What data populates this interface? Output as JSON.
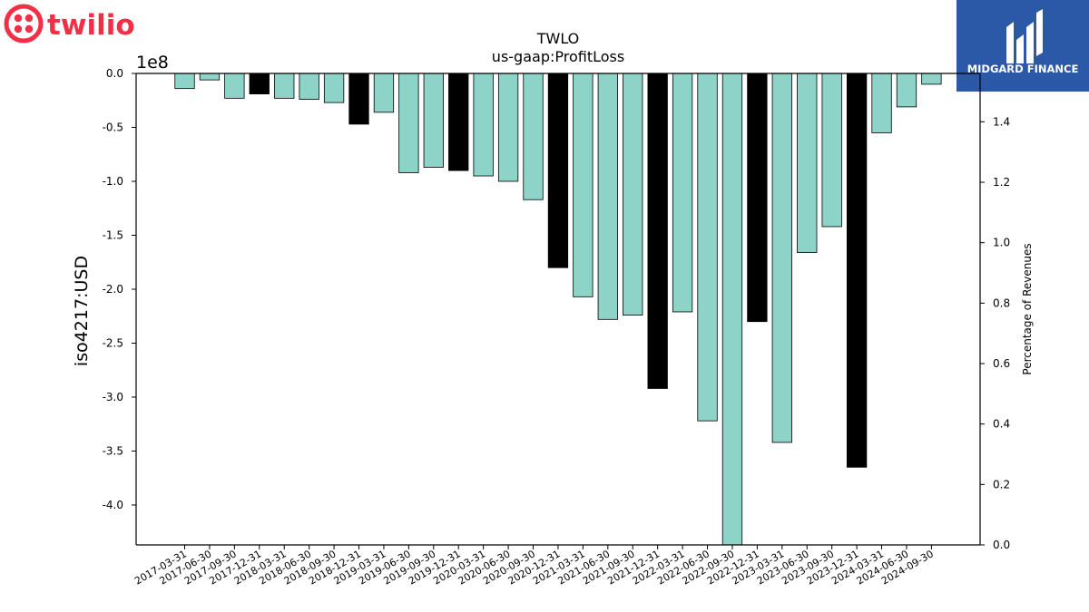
{
  "logos": {
    "left_brand": "twilio",
    "right_brand": "MIDGARD FINANCE"
  },
  "colors": {
    "bar_default": "#8dd3c7",
    "bar_q4": "#000000",
    "twilio_red": "#f22f46",
    "midgard_blue": "#2b59a8"
  },
  "chart_data": {
    "type": "bar",
    "title": "TWLO",
    "subtitle": "us-gaap:ProfitLoss",
    "ylabel": "iso4217:USD",
    "y_offset_label": "1e8",
    "y2label": "Percentage of Revenues",
    "ylim": [
      -437000000.0,
      0
    ],
    "y2lim": [
      0,
      1.56
    ],
    "yticks": [
      0.0,
      -0.5,
      -1.0,
      -1.5,
      -2.0,
      -2.5,
      -3.0,
      -3.5,
      -4.0
    ],
    "y2ticks": [
      0.0,
      0.2,
      0.4,
      0.6,
      0.8,
      1.0,
      1.2,
      1.4
    ],
    "grid": false,
    "categories": [
      "2017-03-31",
      "2017-06-30",
      "2017-09-30",
      "2017-12-31",
      "2018-03-31",
      "2018-06-30",
      "2018-09-30",
      "2018-12-31",
      "2019-03-31",
      "2019-06-30",
      "2019-09-30",
      "2019-12-31",
      "2020-03-31",
      "2020-06-30",
      "2020-09-30",
      "2020-12-31",
      "2021-03-31",
      "2021-06-30",
      "2021-09-30",
      "2021-12-31",
      "2022-03-31",
      "2022-06-30",
      "2022-09-30",
      "2022-12-31",
      "2023-03-31",
      "2023-06-30",
      "2023-09-30",
      "2023-12-31",
      "2024-03-31",
      "2024-06-30",
      "2024-09-30"
    ],
    "values": [
      -14000000,
      -6000000,
      -23000000,
      -19000000,
      -23000000,
      -24000000,
      -27000000,
      -47000000,
      -36000000,
      -92000000,
      -87000000,
      -90000000,
      -95000000,
      -100000000,
      -117000000,
      -180000000,
      -207000000,
      -228000000,
      -224000000,
      -292000000,
      -221000000,
      -322000000,
      -437000000,
      -230000000,
      -342000000,
      -166000000,
      -142000000,
      -365000000,
      -55000000,
      -31000000,
      -10000000
    ],
    "highlight_quarter_end": "12-31"
  }
}
